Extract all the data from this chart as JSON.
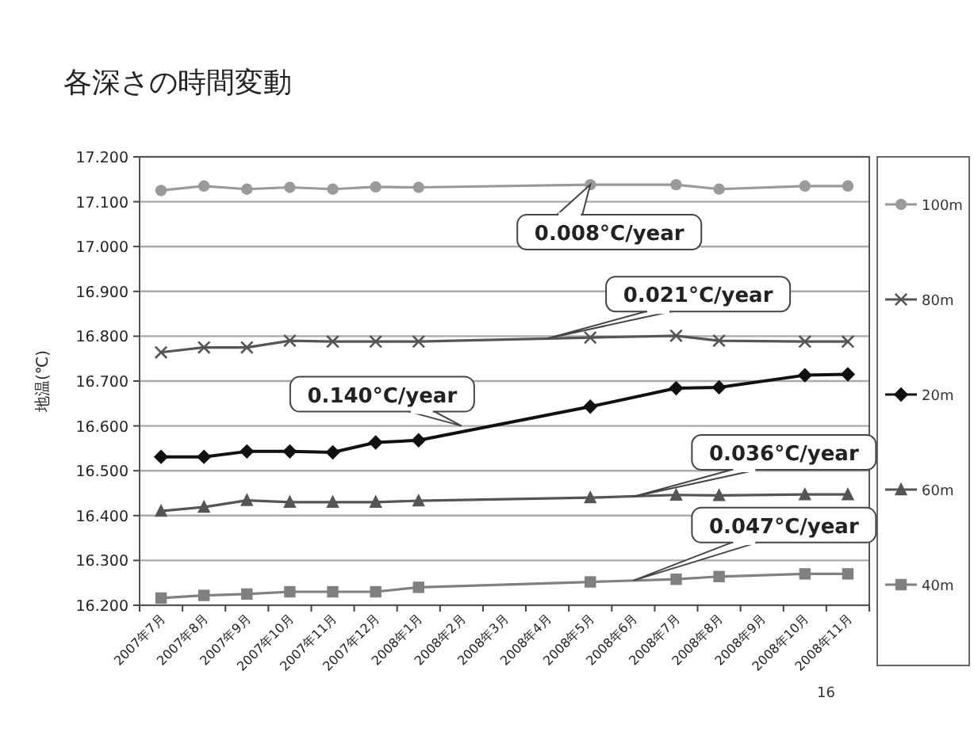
{
  "chart_data": {
    "type": "line",
    "title": "各深さの時間変動",
    "ylabel": "地温(℃)",
    "categories": [
      "2007年7月",
      "2007年8月",
      "2007年9月",
      "2007年10月",
      "2007年11月",
      "2007年12月",
      "2008年1月",
      "2008年2月",
      "2008年3月",
      "2008年4月",
      "2008年5月",
      "2008年6月",
      "2008年7月",
      "2008年8月",
      "2008年9月",
      "2008年10月",
      "2008年11月"
    ],
    "series": [
      {
        "name": "100m",
        "color": "#9a9a9a",
        "marker": "circle",
        "values": [
          17.125,
          17.135,
          17.128,
          17.132,
          17.128,
          17.133,
          17.132,
          null,
          null,
          null,
          17.138,
          null,
          17.138,
          17.128,
          null,
          17.135,
          17.135
        ]
      },
      {
        "name": "80m",
        "color": "#555555",
        "marker": "cross",
        "values": [
          16.764,
          16.775,
          16.775,
          16.79,
          16.788,
          16.788,
          16.788,
          null,
          null,
          null,
          16.797,
          null,
          16.801,
          16.79,
          null,
          16.788,
          16.788
        ]
      },
      {
        "name": "20m",
        "color": "#111111",
        "marker": "diamond",
        "values": [
          16.531,
          16.531,
          16.543,
          16.543,
          16.541,
          16.563,
          16.568,
          null,
          null,
          null,
          16.643,
          null,
          16.684,
          16.686,
          null,
          16.713,
          16.715
        ]
      },
      {
        "name": "60m",
        "color": "#555555",
        "marker": "triangle",
        "values": [
          16.41,
          16.419,
          16.434,
          16.43,
          16.43,
          16.43,
          16.433,
          null,
          null,
          null,
          16.44,
          null,
          16.446,
          16.445,
          null,
          16.447,
          16.447
        ]
      },
      {
        "name": "40m",
        "color": "#808080",
        "marker": "square",
        "values": [
          16.216,
          16.222,
          16.225,
          16.23,
          16.23,
          16.23,
          16.24,
          null,
          null,
          null,
          16.252,
          null,
          16.258,
          16.264,
          null,
          16.27,
          16.27
        ]
      }
    ],
    "ylim": [
      16.2,
      17.2
    ],
    "yticks": [
      {
        "value": 16.2,
        "label": "16.200"
      },
      {
        "value": 16.3,
        "label": "16.300"
      },
      {
        "value": 16.4,
        "label": "16.400"
      },
      {
        "value": 16.5,
        "label": "16.500"
      },
      {
        "value": 16.6,
        "label": "16.600"
      },
      {
        "value": 16.7,
        "label": "16.700"
      },
      {
        "value": 16.8,
        "label": "16.800"
      },
      {
        "value": 16.9,
        "label": "16.900"
      },
      {
        "value": 17.0,
        "label": "17.000"
      },
      {
        "value": 17.1,
        "label": "17.100"
      },
      {
        "value": 17.2,
        "label": "17.200"
      }
    ],
    "grid": "y",
    "legend": "right",
    "annotations": [
      {
        "text": "0.008°C/year",
        "x": "2008年5月",
        "y": 17.138
      },
      {
        "text": "0.021°C/year",
        "x": "2008年4月",
        "y": 16.795
      },
      {
        "text": "0.140°C/year",
        "x": "2008年2月",
        "y": 16.6
      },
      {
        "text": "0.036°C/year",
        "x": "2008年6月",
        "y": 16.442
      },
      {
        "text": "0.047°C/year",
        "x": "2008年6月",
        "y": 16.255
      },
      "16"
    ]
  }
}
